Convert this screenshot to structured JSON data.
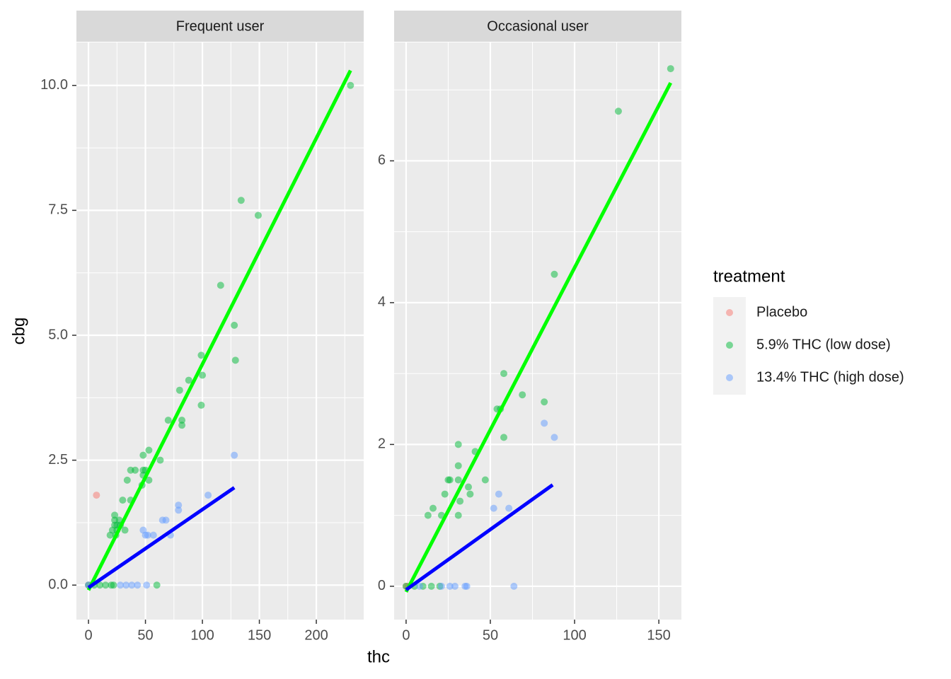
{
  "chart_data": {
    "type": "scatter",
    "x_label": "thc",
    "y_label": "cbg",
    "legend_title": "treatment",
    "series": [
      {
        "name": "Placebo",
        "color": "#F8766D"
      },
      {
        "name": "5.9% THC (low dose)",
        "color": "#00BA38"
      },
      {
        "name": "13.4% THC (high dose)",
        "color": "#619CFF"
      }
    ],
    "grid": true,
    "panels": [
      {
        "title": "Frequent user",
        "xlim": [
          -10.6,
          241.6
        ],
        "xticks": [
          0,
          50,
          100,
          150,
          200
        ],
        "ylim": [
          -0.69,
          10.86
        ],
        "yticks": [
          {
            "value": 0,
            "label": "0.0"
          },
          2.5,
          {
            "value": 5,
            "label": "5.0"
          },
          7.5,
          {
            "value": 10,
            "label": "10.0"
          }
        ],
        "points": [
          {
            "x": [
              7,
              0
            ],
            "y": [
              1.8,
              0
            ]
          },
          {
            "x": [
              230,
              134,
              149,
              116,
              128,
              129,
              99,
              100,
              88,
              80,
              99,
              82,
              70,
              82,
              53,
              48,
              63,
              37,
              41,
              48,
              50,
              48,
              34,
              53,
              47,
              30,
              37,
              23,
              27,
              23,
              25,
              23,
              28,
              21,
              32,
              25,
              19,
              24,
              60,
              0,
              5,
              10,
              15,
              20,
              22
            ],
            "y": [
              10.0,
              7.7,
              7.4,
              6.0,
              5.2,
              4.5,
              4.6,
              4.2,
              4.1,
              3.9,
              3.6,
              3.3,
              3.3,
              3.2,
              2.7,
              2.6,
              2.5,
              2.3,
              2.3,
              2.3,
              2.3,
              2.2,
              2.1,
              2.1,
              2.0,
              1.7,
              1.7,
              1.4,
              1.3,
              1.3,
              1.2,
              1.2,
              1.2,
              1.1,
              1.1,
              1.1,
              1.0,
              1.0,
              0,
              0,
              0,
              0,
              0,
              0,
              0
            ]
          },
          {
            "x": [
              128,
              105,
              79,
              79,
              65,
              68,
              48,
              50,
              52,
              57,
              72,
              28,
              33,
              38,
              43,
              51,
              0
            ],
            "y": [
              2.6,
              1.8,
              1.6,
              1.5,
              1.3,
              1.3,
              1.1,
              1.0,
              1.0,
              1.0,
              1.0,
              0,
              0,
              0,
              0,
              0,
              0
            ]
          }
        ],
        "fits": [
          {
            "color": "#00FF00",
            "x": [
              0,
              230
            ],
            "y": [
              -0.1,
              10.3
            ]
          },
          {
            "color": "#0000FF",
            "x": [
              0,
              128
            ],
            "y": [
              -0.05,
              1.95
            ]
          }
        ]
      },
      {
        "title": "Occasional user",
        "xlim": [
          -7.1,
          163.4
        ],
        "xticks": [
          0,
          50,
          100,
          150
        ],
        "ylim": [
          -0.47,
          7.67
        ],
        "yticks": [
          0,
          2,
          4,
          6
        ],
        "points": [
          {
            "x": [
              0,
              1
            ],
            "y": [
              0,
              0
            ]
          },
          {
            "x": [
              157,
              126,
              88,
              58,
              69,
              82,
              54,
              56,
              58,
              31,
              41,
              31,
              25,
              26,
              31,
              47,
              37,
              23,
              38,
              32,
              16,
              13,
              21,
              31,
              0,
              5,
              10,
              15,
              20
            ],
            "y": [
              7.3,
              6.7,
              4.4,
              3.0,
              2.7,
              2.6,
              2.5,
              2.5,
              2.1,
              2.0,
              1.9,
              1.7,
              1.5,
              1.5,
              1.5,
              1.5,
              1.4,
              1.3,
              1.3,
              1.2,
              1.1,
              1.0,
              1.0,
              1.0,
              0,
              0,
              0,
              0,
              0
            ]
          },
          {
            "x": [
              82,
              88,
              55,
              52,
              61,
              26,
              29,
              35,
              36,
              64,
              8,
              21
            ],
            "y": [
              2.3,
              2.1,
              1.3,
              1.1,
              1.1,
              0,
              0,
              0,
              0,
              0,
              0,
              0
            ]
          }
        ],
        "fits": [
          {
            "color": "#00FF00",
            "x": [
              0,
              157
            ],
            "y": [
              -0.08,
              7.1
            ]
          },
          {
            "color": "#0000FF",
            "x": [
              0,
              87
            ],
            "y": [
              -0.05,
              1.43
            ]
          }
        ]
      }
    ]
  }
}
